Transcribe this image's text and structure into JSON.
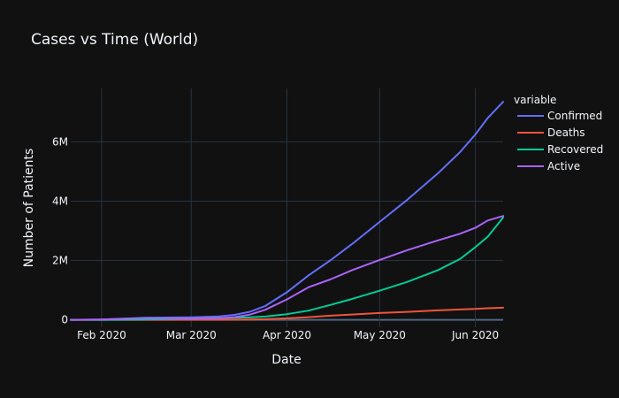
{
  "chart_data": {
    "type": "line",
    "title": "Cases vs Time (World)",
    "xlabel": "Date",
    "ylabel": "Number of Patients",
    "xlim": [
      "2020-01-22",
      "2020-06-10"
    ],
    "ylim": [
      -250000,
      7800000
    ],
    "x_ticks": [
      {
        "date": "2020-02-01",
        "label": "Feb 2020"
      },
      {
        "date": "2020-03-01",
        "label": "Mar 2020"
      },
      {
        "date": "2020-04-01",
        "label": "Apr 2020"
      },
      {
        "date": "2020-05-01",
        "label": "May 2020"
      },
      {
        "date": "2020-06-01",
        "label": "Jun 2020"
      }
    ],
    "y_ticks": [
      {
        "value": 0,
        "label": "0"
      },
      {
        "value": 2000000,
        "label": "2M"
      },
      {
        "value": 4000000,
        "label": "4M"
      },
      {
        "value": 6000000,
        "label": "6M"
      }
    ],
    "grid": true,
    "legend": {
      "title": "variable",
      "position": "right"
    },
    "x": [
      "2020-01-22",
      "2020-02-01",
      "2020-02-15",
      "2020-03-01",
      "2020-03-10",
      "2020-03-15",
      "2020-03-20",
      "2020-03-25",
      "2020-04-01",
      "2020-04-08",
      "2020-04-15",
      "2020-04-22",
      "2020-05-01",
      "2020-05-10",
      "2020-05-20",
      "2020-05-27",
      "2020-06-01",
      "2020-06-05",
      "2020-06-10"
    ],
    "series": [
      {
        "name": "Confirmed",
        "color": "#636efa",
        "values": [
          0.0006,
          0.012,
          0.069,
          0.088,
          0.118,
          0.167,
          0.272,
          0.47,
          0.93,
          1.5,
          2.0,
          2.55,
          3.3,
          4.05,
          4.95,
          5.65,
          6.25,
          6.8,
          7.35
        ]
      },
      {
        "name": "Deaths",
        "color": "#ef553b",
        "values": [
          2e-05,
          0.0003,
          0.0017,
          0.003,
          0.0043,
          0.0065,
          0.0112,
          0.022,
          0.05,
          0.09,
          0.14,
          0.18,
          0.23,
          0.27,
          0.32,
          0.35,
          0.37,
          0.39,
          0.41
        ]
      },
      {
        "name": "Recovered",
        "color": "#00cc96",
        "values": [
          0.0,
          0.0003,
          0.009,
          0.042,
          0.06,
          0.07,
          0.085,
          0.11,
          0.19,
          0.31,
          0.5,
          0.7,
          0.98,
          1.28,
          1.68,
          2.05,
          2.45,
          2.8,
          3.45
        ]
      },
      {
        "name": "Active",
        "color": "#ab63fa",
        "values": [
          0.0006,
          0.0115,
          0.058,
          0.043,
          0.055,
          0.09,
          0.176,
          0.34,
          0.69,
          1.1,
          1.36,
          1.67,
          2.02,
          2.35,
          2.68,
          2.9,
          3.1,
          3.35,
          3.5
        ]
      }
    ],
    "values_unit_multiplier": 1000000
  }
}
